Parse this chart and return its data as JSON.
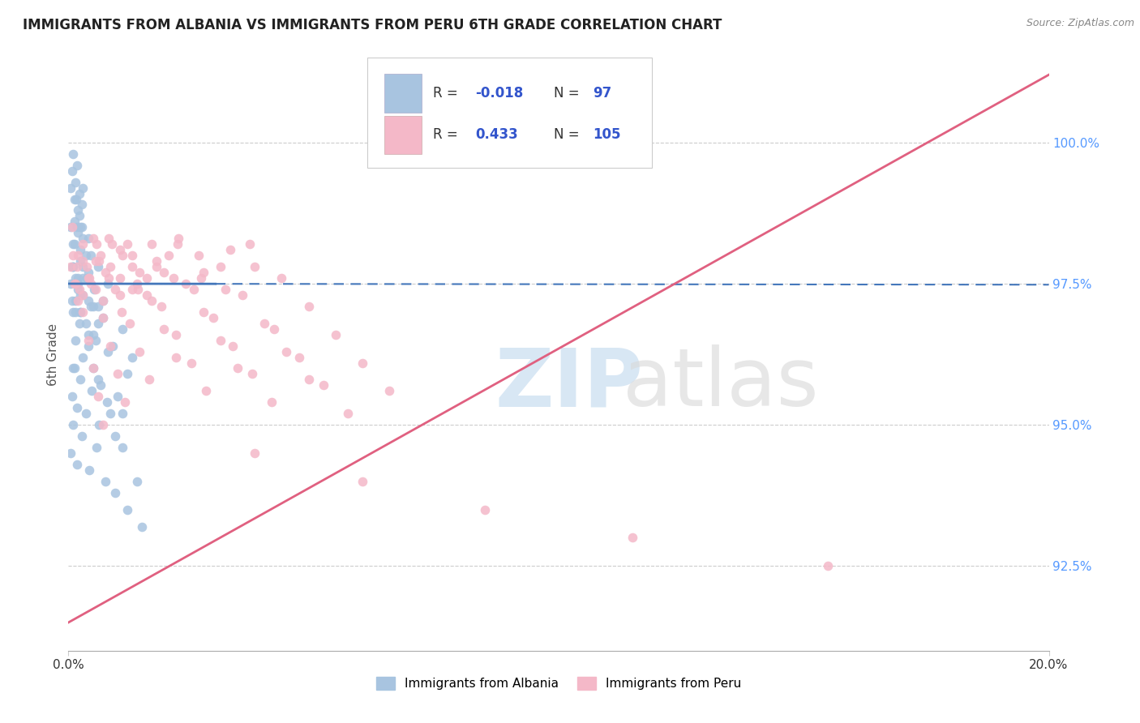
{
  "title": "IMMIGRANTS FROM ALBANIA VS IMMIGRANTS FROM PERU 6TH GRADE CORRELATION CHART",
  "source": "Source: ZipAtlas.com",
  "ylabel": "6th Grade",
  "ytick_values": [
    92.5,
    95.0,
    97.5,
    100.0
  ],
  "xlim": [
    0.0,
    20.0
  ],
  "ylim": [
    91.0,
    101.5
  ],
  "color_albania": "#a8c4e0",
  "color_peru": "#f4b8c8",
  "color_regression_albania": "#4477bb",
  "color_regression_peru": "#e06080",
  "background_color": "#ffffff",
  "marker_size": 70,
  "albania_scatter_x": [
    0.05,
    0.08,
    0.1,
    0.12,
    0.15,
    0.18,
    0.2,
    0.22,
    0.25,
    0.28,
    0.1,
    0.13,
    0.16,
    0.19,
    0.22,
    0.25,
    0.28,
    0.3,
    0.35,
    0.4,
    0.08,
    0.12,
    0.18,
    0.24,
    0.3,
    0.38,
    0.45,
    0.52,
    0.6,
    0.7,
    0.05,
    0.1,
    0.15,
    0.2,
    0.25,
    0.3,
    0.4,
    0.5,
    0.6,
    0.8,
    0.1,
    0.2,
    0.3,
    0.4,
    0.5,
    0.6,
    0.7,
    0.9,
    1.1,
    1.3,
    0.05,
    0.08,
    0.1,
    0.15,
    0.2,
    0.25,
    0.3,
    0.35,
    0.45,
    0.55,
    0.1,
    0.15,
    0.22,
    0.3,
    0.4,
    0.5,
    0.65,
    0.8,
    1.0,
    1.2,
    0.08,
    0.12,
    0.18,
    0.25,
    0.35,
    0.48,
    0.62,
    0.78,
    0.95,
    1.1,
    0.05,
    0.1,
    0.18,
    0.28,
    0.42,
    0.58,
    0.75,
    0.95,
    1.2,
    1.5,
    0.15,
    0.25,
    0.4,
    0.6,
    0.85,
    1.1,
    1.4
  ],
  "albania_scatter_y": [
    99.2,
    99.5,
    99.8,
    99.0,
    99.3,
    99.6,
    98.8,
    99.1,
    98.5,
    98.9,
    98.2,
    98.6,
    99.0,
    98.4,
    98.7,
    98.1,
    98.5,
    99.2,
    98.0,
    98.3,
    97.8,
    98.2,
    98.5,
    97.9,
    98.3,
    97.6,
    98.0,
    97.4,
    97.8,
    97.2,
    97.5,
    97.8,
    97.2,
    97.6,
    97.0,
    97.3,
    97.7,
    97.1,
    96.8,
    97.5,
    97.0,
    97.4,
    97.8,
    97.2,
    96.6,
    97.1,
    96.9,
    96.4,
    96.7,
    96.2,
    98.5,
    97.2,
    97.8,
    97.0,
    97.5,
    97.3,
    97.6,
    96.8,
    97.1,
    96.5,
    96.0,
    96.5,
    96.8,
    96.2,
    96.6,
    96.0,
    95.7,
    96.3,
    95.5,
    95.9,
    95.5,
    96.0,
    95.3,
    95.8,
    95.2,
    95.6,
    95.0,
    95.4,
    94.8,
    95.2,
    94.5,
    95.0,
    94.3,
    94.8,
    94.2,
    94.6,
    94.0,
    93.8,
    93.5,
    93.2,
    97.6,
    97.0,
    96.4,
    95.8,
    95.2,
    94.6,
    94.0
  ],
  "peru_scatter_x": [
    0.05,
    0.12,
    0.2,
    0.3,
    0.42,
    0.55,
    0.7,
    0.88,
    1.08,
    1.3,
    0.08,
    0.18,
    0.3,
    0.45,
    0.62,
    0.82,
    1.05,
    1.3,
    1.6,
    1.95,
    0.1,
    0.22,
    0.38,
    0.58,
    0.82,
    1.1,
    1.42,
    1.8,
    2.22,
    2.7,
    0.15,
    0.3,
    0.5,
    0.75,
    1.05,
    1.4,
    1.8,
    2.25,
    2.75,
    3.3,
    0.2,
    0.4,
    0.65,
    0.95,
    1.3,
    1.7,
    2.15,
    2.65,
    3.2,
    3.8,
    0.3,
    0.55,
    0.85,
    1.2,
    1.6,
    2.05,
    2.55,
    3.1,
    3.7,
    4.35,
    0.4,
    0.7,
    1.05,
    1.45,
    1.9,
    2.4,
    2.95,
    3.55,
    4.2,
    4.9,
    0.5,
    0.85,
    1.25,
    1.7,
    2.2,
    2.75,
    3.35,
    4.0,
    4.7,
    5.45,
    0.6,
    1.0,
    1.45,
    1.95,
    2.5,
    3.1,
    3.75,
    4.45,
    5.2,
    6.0,
    0.7,
    1.15,
    1.65,
    2.2,
    2.8,
    3.45,
    4.15,
    4.9,
    5.7,
    6.55,
    3.8,
    6.0,
    8.5,
    11.5,
    15.5
  ],
  "peru_scatter_y": [
    97.8,
    97.5,
    98.0,
    97.3,
    97.6,
    97.9,
    97.2,
    98.2,
    97.0,
    97.4,
    98.5,
    97.8,
    98.2,
    97.5,
    97.9,
    98.3,
    97.6,
    98.0,
    97.3,
    97.7,
    98.0,
    97.4,
    97.8,
    98.2,
    97.6,
    98.0,
    97.4,
    97.8,
    98.2,
    97.6,
    97.5,
    97.9,
    98.3,
    97.7,
    98.1,
    97.5,
    97.9,
    98.3,
    97.7,
    98.1,
    97.2,
    97.6,
    98.0,
    97.4,
    97.8,
    98.2,
    97.6,
    98.0,
    97.4,
    97.8,
    97.0,
    97.4,
    97.8,
    98.2,
    97.6,
    98.0,
    97.4,
    97.8,
    98.2,
    97.6,
    96.5,
    96.9,
    97.3,
    97.7,
    97.1,
    97.5,
    96.9,
    97.3,
    96.7,
    97.1,
    96.0,
    96.4,
    96.8,
    97.2,
    96.6,
    97.0,
    96.4,
    96.8,
    96.2,
    96.6,
    95.5,
    95.9,
    96.3,
    96.7,
    96.1,
    96.5,
    95.9,
    96.3,
    95.7,
    96.1,
    95.0,
    95.4,
    95.8,
    96.2,
    95.6,
    96.0,
    95.4,
    95.8,
    95.2,
    95.6,
    94.5,
    94.0,
    93.5,
    93.0,
    92.5
  ]
}
